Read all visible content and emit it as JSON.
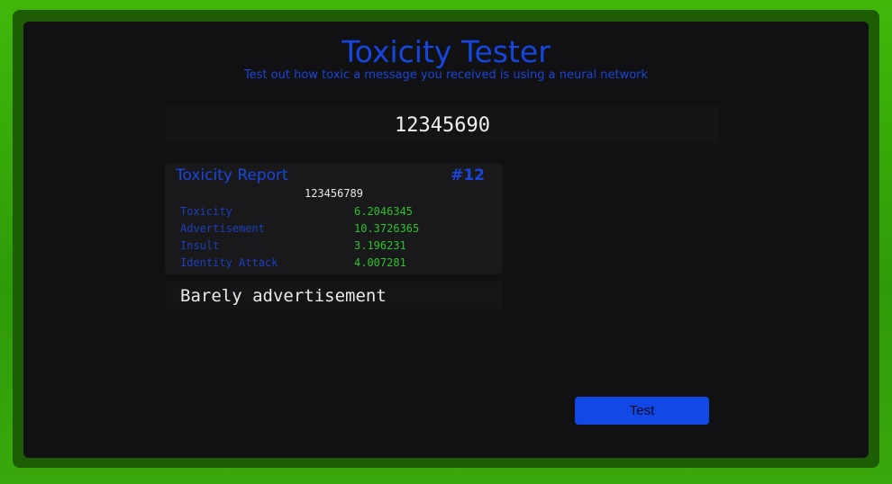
{
  "header": {
    "title": "Toxicity Tester",
    "subtitle": "Test out how toxic a message you received is using a neural network"
  },
  "input": {
    "value": "12345690"
  },
  "report": {
    "title": "Toxicity Report",
    "number": "#12",
    "message": "123456789",
    "rows": [
      {
        "label": "Toxicity",
        "value": "6.2046345"
      },
      {
        "label": "Advertisement",
        "value": "10.3726365"
      },
      {
        "label": "Insult",
        "value": "3.196231"
      },
      {
        "label": "Identity Attack",
        "value": "4.007281"
      }
    ]
  },
  "verdict": "Barely advertisement",
  "button": {
    "label": "Test"
  }
}
